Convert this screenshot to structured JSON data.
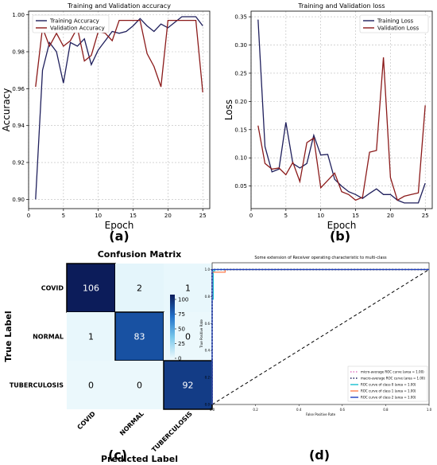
{
  "chart_data": [
    {
      "panel": "(a)",
      "type": "line",
      "title": "Training and Validation accuracy",
      "xlabel": "Epoch",
      "ylabel": "Accuracy",
      "xlim": [
        0,
        26
      ],
      "ylim": [
        0.895,
        1.002
      ],
      "xticks": [
        0,
        5,
        10,
        15,
        20,
        25
      ],
      "yticks": [
        0.9,
        0.92,
        0.94,
        0.96,
        0.98,
        1.0
      ],
      "ytick_labels": [
        "0.90",
        "0.92",
        "0.94",
        "0.96",
        "0.98",
        "1.00"
      ],
      "grid": true,
      "legend": "top-left",
      "x": [
        1,
        2,
        3,
        4,
        5,
        6,
        7,
        8,
        9,
        10,
        11,
        12,
        13,
        14,
        15,
        16,
        17,
        18,
        19,
        20,
        21,
        22,
        23,
        24,
        25
      ],
      "series": [
        {
          "name": "Training Accuracy",
          "color": "#1f1f5c",
          "values": [
            0.9,
            0.97,
            0.985,
            0.98,
            0.963,
            0.985,
            0.983,
            0.987,
            0.973,
            0.981,
            0.986,
            0.991,
            0.99,
            0.991,
            0.994,
            0.998,
            0.994,
            0.991,
            0.995,
            0.993,
            0.996,
            0.999,
            0.999,
            0.999,
            0.994
          ]
        },
        {
          "name": "Validation Accuracy",
          "color": "#8b1a1a",
          "values": [
            0.961,
            0.993,
            0.983,
            0.99,
            0.983,
            0.986,
            0.993,
            0.975,
            0.978,
            0.991,
            0.99,
            0.986,
            0.997,
            0.997,
            0.997,
            0.997,
            0.979,
            0.972,
            0.961,
            0.997,
            0.997,
            0.997,
            0.997,
            0.997,
            0.958
          ]
        }
      ]
    },
    {
      "panel": "(b)",
      "type": "line",
      "title": "Training and Validation loss",
      "xlabel": "Epoch",
      "ylabel": "Loss",
      "xlim": [
        0,
        26
      ],
      "ylim": [
        0.01,
        0.36
      ],
      "xticks": [
        0,
        5,
        10,
        15,
        20,
        25
      ],
      "yticks": [
        0.05,
        0.1,
        0.15,
        0.2,
        0.25,
        0.3,
        0.35
      ],
      "ytick_labels": [
        "0.05",
        "0.10",
        "0.15",
        "0.20",
        "0.25",
        "0.30",
        "0.35"
      ],
      "grid": true,
      "legend": "top-right",
      "x": [
        1,
        2,
        3,
        4,
        5,
        6,
        7,
        8,
        9,
        10,
        11,
        12,
        13,
        14,
        15,
        16,
        17,
        18,
        19,
        20,
        21,
        22,
        23,
        24,
        25
      ],
      "series": [
        {
          "name": "Training Loss",
          "color": "#1f1f5c",
          "values": [
            0.345,
            0.12,
            0.075,
            0.08,
            0.163,
            0.09,
            0.082,
            0.09,
            0.14,
            0.105,
            0.106,
            0.062,
            0.05,
            0.04,
            0.035,
            0.028,
            0.037,
            0.045,
            0.035,
            0.035,
            0.025,
            0.02,
            0.02,
            0.02,
            0.055
          ]
        },
        {
          "name": "Validation Loss",
          "color": "#8b1a1a",
          "values": [
            0.157,
            0.09,
            0.08,
            0.082,
            0.07,
            0.092,
            0.058,
            0.127,
            0.135,
            0.047,
            0.06,
            0.073,
            0.04,
            0.035,
            0.025,
            0.03,
            0.11,
            0.113,
            0.278,
            0.065,
            0.025,
            0.032,
            0.035,
            0.038,
            0.193
          ]
        }
      ]
    },
    {
      "panel": "(c)",
      "type": "heatmap",
      "title": "Confusion Matrix",
      "xlabel": "Predicted Label",
      "ylabel": "True Label",
      "labels": [
        "COVID",
        "NORMAL",
        "TUBERCULOSIS"
      ],
      "matrix": [
        [
          106,
          2,
          1
        ],
        [
          1,
          83,
          0
        ],
        [
          0,
          0,
          92
        ]
      ],
      "cell_labels": [
        [
          "106",
          "2",
          "1"
        ],
        [
          "1",
          "83",
          "0"
        ],
        [
          "0",
          "0",
          "92"
        ]
      ],
      "colorbar_ticks": [
        0,
        25,
        50,
        75,
        100
      ],
      "colorbar_tick_labels": [
        "0",
        "25",
        "50",
        "75",
        "100"
      ],
      "highlight_diagonal": true
    },
    {
      "panel": "(d)",
      "type": "line",
      "title": "Some extension of Receiver operating characteristic to multi-class",
      "xlabel": "False Positive Rate",
      "ylabel": "True Positive Rate",
      "xlim": [
        0,
        1
      ],
      "ylim": [
        0,
        1.05
      ],
      "xticks": [
        0,
        0.2,
        0.4,
        0.6,
        0.8,
        1.0
      ],
      "xtick_labels": [
        "0.0",
        "0.2",
        "0.4",
        "0.6",
        "0.8",
        "1.0"
      ],
      "yticks": [
        0,
        0.2,
        0.4,
        0.6,
        0.8,
        1.0
      ],
      "ytick_labels": [
        "0.0",
        "0.2",
        "0.4",
        "0.6",
        "0.8",
        "1.0"
      ],
      "legend": "bottom-right",
      "series": [
        {
          "name": "micro-average ROC curve (area = 1.00)",
          "color": "#e377c2",
          "style": "dotted",
          "points": [
            [
              0,
              0
            ],
            [
              0,
              1.0
            ],
            [
              1,
              1.0
            ]
          ]
        },
        {
          "name": "macro-average ROC curve (area = 1.00)",
          "color": "#1f1f5c",
          "style": "dotted",
          "points": [
            [
              0,
              0
            ],
            [
              0,
              1.0
            ],
            [
              1,
              1.0
            ]
          ]
        },
        {
          "name": "ROC curve of class 0 (area = 1.00)",
          "color": "#17becf",
          "style": "solid",
          "points": [
            [
              0,
              0
            ],
            [
              0,
              0.78
            ],
            [
              0.005,
              0.78
            ],
            [
              0.005,
              0.99
            ],
            [
              0.012,
              0.99
            ],
            [
              0.012,
              1.0
            ],
            [
              1,
              1.0
            ]
          ]
        },
        {
          "name": "ROC curve of class 1 (area = 1.00)",
          "color": "#ff7f50",
          "style": "solid",
          "points": [
            [
              0,
              0
            ],
            [
              0,
              0.98
            ],
            [
              0.06,
              0.98
            ],
            [
              0.06,
              1.0
            ],
            [
              0.11,
              1.0
            ],
            [
              1,
              1.0
            ]
          ]
        },
        {
          "name": "ROC curve of class 2 (area = 1.00)",
          "color": "#1f3fbf",
          "style": "solid",
          "points": [
            [
              0,
              0
            ],
            [
              0,
              1.0
            ],
            [
              1,
              1.0
            ]
          ]
        }
      ],
      "diagonal": {
        "color": "#000000",
        "style": "dashed",
        "points": [
          [
            0,
            0
          ],
          [
            1,
            1
          ]
        ]
      }
    }
  ]
}
